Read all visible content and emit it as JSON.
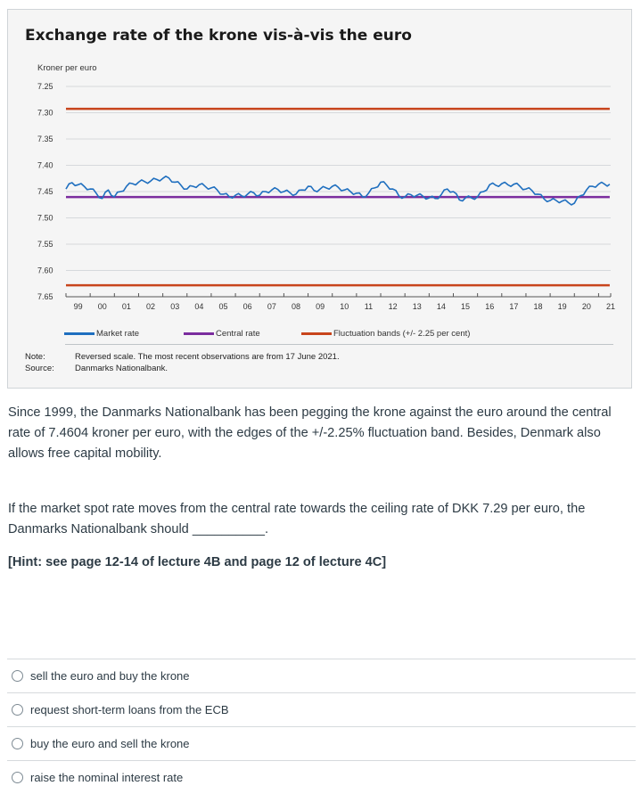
{
  "figure": {
    "note_key": "Note:",
    "note_text": "Reversed scale. The most recent observations are from 17 June 2021.",
    "source_key": "Source:",
    "source_text": "Danmarks Nationalbank."
  },
  "chart_data": {
    "type": "line",
    "title": "Exchange rate of the krone vis-à-vis the euro",
    "ylabel": "Kroner per euro",
    "xlabel": "",
    "y_reversed": true,
    "ylim": [
      7.25,
      7.65
    ],
    "yticks": [
      "7.25",
      "7.30",
      "7.35",
      "7.40",
      "7.45",
      "7.50",
      "7.55",
      "7.60",
      "7.65"
    ],
    "xticks": [
      "99",
      "00",
      "01",
      "02",
      "03",
      "04",
      "05",
      "06",
      "07",
      "08",
      "09",
      "10",
      "11",
      "12",
      "13",
      "14",
      "15",
      "16",
      "17",
      "18",
      "19",
      "20",
      "21"
    ],
    "xlim": [
      1999.0,
      2021.5
    ],
    "grid": true,
    "legend_position": "bottom",
    "colors": {
      "market": "#1f6fbf",
      "central": "#7b2d9e",
      "band": "#c8451c",
      "grid": "#d6d9dc"
    },
    "series": [
      {
        "name": "Market rate",
        "x": [
          1999.0,
          1999.25,
          1999.5,
          1999.75,
          2000.0,
          2000.25,
          2000.5,
          2000.75,
          2001.0,
          2001.25,
          2001.5,
          2001.75,
          2002.0,
          2002.25,
          2002.5,
          2002.75,
          2003.0,
          2003.25,
          2003.5,
          2003.75,
          2004.0,
          2004.25,
          2004.5,
          2004.75,
          2005.0,
          2005.25,
          2005.5,
          2005.75,
          2006.0,
          2006.25,
          2006.5,
          2006.75,
          2007.0,
          2007.25,
          2007.5,
          2007.75,
          2008.0,
          2008.25,
          2008.5,
          2008.75,
          2009.0,
          2009.25,
          2009.5,
          2009.75,
          2010.0,
          2010.25,
          2010.5,
          2010.75,
          2011.0,
          2011.25,
          2011.5,
          2011.75,
          2012.0,
          2012.25,
          2012.5,
          2012.75,
          2013.0,
          2013.25,
          2013.5,
          2013.75,
          2014.0,
          2014.25,
          2014.5,
          2014.75,
          2015.0,
          2015.25,
          2015.5,
          2015.75,
          2016.0,
          2016.25,
          2016.5,
          2016.75,
          2017.0,
          2017.25,
          2017.5,
          2017.75,
          2018.0,
          2018.25,
          2018.5,
          2018.75,
          2019.0,
          2019.25,
          2019.5,
          2019.75,
          2020.0,
          2020.25,
          2020.5,
          2020.75,
          2021.0,
          2021.25,
          2021.46
        ],
        "values": [
          7.445,
          7.433,
          7.437,
          7.44,
          7.445,
          7.453,
          7.463,
          7.447,
          7.46,
          7.45,
          7.44,
          7.435,
          7.432,
          7.431,
          7.43,
          7.427,
          7.425,
          7.424,
          7.432,
          7.438,
          7.445,
          7.44,
          7.437,
          7.44,
          7.443,
          7.447,
          7.455,
          7.46,
          7.457,
          7.458,
          7.455,
          7.452,
          7.457,
          7.45,
          7.447,
          7.446,
          7.45,
          7.452,
          7.455,
          7.447,
          7.44,
          7.448,
          7.445,
          7.443,
          7.44,
          7.442,
          7.447,
          7.45,
          7.453,
          7.46,
          7.453,
          7.443,
          7.432,
          7.438,
          7.445,
          7.458,
          7.46,
          7.456,
          7.457,
          7.459,
          7.462,
          7.463,
          7.456,
          7.445,
          7.45,
          7.466,
          7.462,
          7.462,
          7.46,
          7.45,
          7.437,
          7.438,
          7.435,
          7.437,
          7.436,
          7.44,
          7.445,
          7.448,
          7.455,
          7.464,
          7.467,
          7.467,
          7.468,
          7.471,
          7.472,
          7.458,
          7.447,
          7.44,
          7.436,
          7.436,
          7.436
        ]
      },
      {
        "name": "Central rate",
        "x": [
          1999.0,
          2021.46
        ],
        "values": [
          7.46038,
          7.46038
        ]
      },
      {
        "name": "Fluctuation bands (+/- 2.25 per cent)",
        "x": [
          1999.0,
          2021.46
        ],
        "values": [
          7.29252,
          7.62824
        ],
        "band": true
      }
    ]
  },
  "question": {
    "intro": "Since 1999, the Danmarks Nationalbank has been pegging the krone against the euro around the central rate of 7.4604 kroner per euro, with the edges of the +/-2.25% fluctuation band. Besides, Denmark also allows free capital mobility.",
    "prompt": "If the market spot rate moves from the central rate towards the ceiling rate of DKK 7.29 per euro, the Danmarks Nationalbank should __________.",
    "hint": "[Hint: see page 12-14 of lecture 4B and page 12 of lecture 4C]",
    "options": [
      "sell the euro and buy the krone",
      "request short-term loans from the ECB",
      "buy the euro and sell the krone",
      "raise the nominal interest rate"
    ]
  }
}
